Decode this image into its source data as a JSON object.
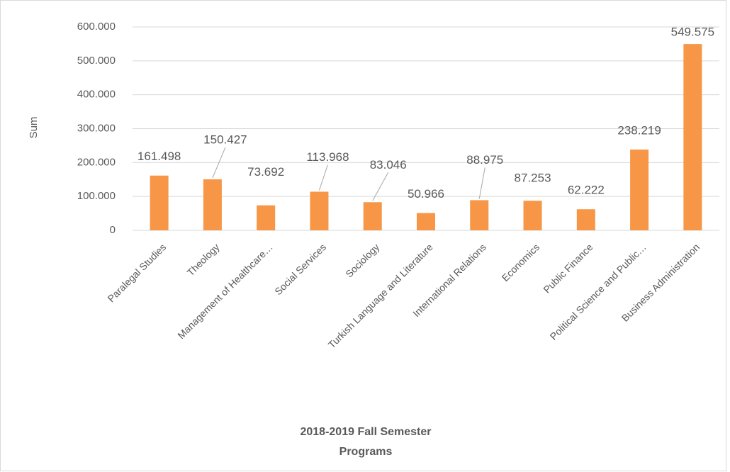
{
  "chart_data": {
    "type": "bar",
    "ylabel": "Sum",
    "xlabel": [
      "2018-2019 Fall Semester",
      "Programs"
    ],
    "categories": [
      "Paralegal Studies",
      "Theology",
      "Management of Healthcare…",
      "Social Services",
      "Sociology",
      "Turkish Language and Literature",
      "International Relations",
      "Economics",
      "Public Finance",
      "Political Science and Public…",
      "Business Administration"
    ],
    "values": [
      161498,
      150427,
      73692,
      113968,
      83046,
      50966,
      88975,
      87253,
      62222,
      238219,
      549575
    ],
    "value_labels": [
      "161.498",
      "150.427",
      "73.692",
      "113.968",
      "83.046",
      "50.966",
      "88.975",
      "87.253",
      "62.222",
      "238.219",
      "549.575"
    ],
    "color": "#f79646",
    "ylim": [
      0,
      600000
    ],
    "yticks": [
      0,
      {
        "value": 100000,
        "label": "100.000"
      },
      {
        "value": 200000,
        "label": "200.000"
      },
      {
        "value": 300000,
        "label": "300.000"
      },
      {
        "value": 400000,
        "label": "400.000"
      },
      {
        "value": 500000,
        "label": "500.000"
      },
      {
        "value": 600000,
        "label": "600.000"
      }
    ],
    "grid": true
  }
}
